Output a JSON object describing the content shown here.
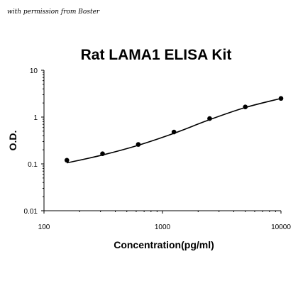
{
  "watermark": "with permission from Boster",
  "chart_data": {
    "type": "scatter",
    "title": "Rat LAMA1 ELISA Kit",
    "xlabel": "Concentration(pg/ml)",
    "ylabel": "O.D.",
    "xscale": "log",
    "yscale": "log",
    "xlim": [
      100,
      10000
    ],
    "ylim": [
      0.01,
      10
    ],
    "xticks": [
      "100",
      "1000",
      "10000"
    ],
    "yticks": [
      "10",
      "1",
      "0.1",
      "0.01"
    ],
    "grid": false,
    "legend": "none",
    "series": [
      {
        "x": [
          156,
          312,
          625,
          1250,
          2500,
          5000,
          10000
        ],
        "y": [
          0.12,
          0.165,
          0.26,
          0.48,
          0.93,
          1.65,
          2.5
        ]
      }
    ],
    "fit_curve": {
      "x": [
        156,
        312,
        625,
        1250,
        2500,
        5000,
        10000
      ],
      "y": [
        0.105,
        0.155,
        0.25,
        0.45,
        0.88,
        1.6,
        2.5
      ]
    }
  }
}
